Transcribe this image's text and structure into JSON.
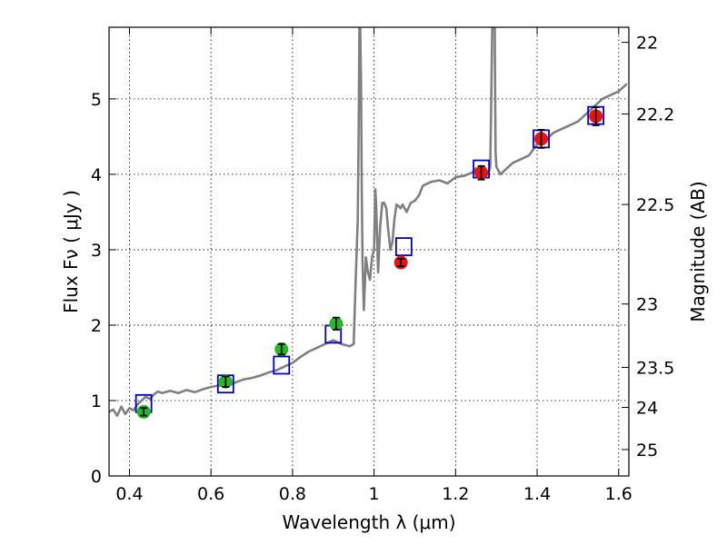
{
  "chart_data": {
    "type": "scatter",
    "xlabel": "Wavelength  λ (μm)",
    "ylabel": "Flux  Fν  ( μJy )",
    "y2label": "Magnitude (AB)",
    "xlim": [
      0.35,
      1.625
    ],
    "ylim": [
      0,
      5.95
    ],
    "grid": true,
    "x_ticks": [
      0.4,
      0.6,
      0.8,
      1.0,
      1.2,
      1.4,
      1.6
    ],
    "x_tick_labels": [
      "0.4",
      "0.6",
      "0.8",
      "1",
      "1.2",
      "1.4",
      "1.6"
    ],
    "y_ticks": [
      0,
      1,
      2,
      3,
      4,
      5
    ],
    "y_tick_labels": [
      "0",
      "1",
      "2",
      "3",
      "4",
      "5"
    ],
    "y2_ticks": [
      {
        "label": "22",
        "flux": 5.75
      },
      {
        "label": "22.2",
        "flux": 4.8
      },
      {
        "label": "22.5",
        "flux": 3.6
      },
      {
        "label": "23",
        "flux": 2.28
      },
      {
        "label": "23.5",
        "flux": 1.44
      },
      {
        "label": "24",
        "flux": 0.91
      },
      {
        "label": "25",
        "flux": 0.35
      }
    ],
    "series": [
      {
        "kind": "line",
        "color": "#808080",
        "x": [
          0.35,
          0.36,
          0.37,
          0.38,
          0.39,
          0.4,
          0.41,
          0.42,
          0.43,
          0.44,
          0.45,
          0.46,
          0.47,
          0.48,
          0.5,
          0.52,
          0.54,
          0.56,
          0.58,
          0.6,
          0.62,
          0.64,
          0.66,
          0.68,
          0.7,
          0.72,
          0.74,
          0.76,
          0.78,
          0.8,
          0.82,
          0.84,
          0.86,
          0.88,
          0.9,
          0.92,
          0.94,
          0.95,
          0.955,
          0.96,
          0.962,
          0.964,
          0.966,
          0.968,
          0.97,
          0.972,
          0.975,
          0.978,
          0.98,
          0.985,
          0.99,
          0.995,
          1.0,
          1.003,
          1.005,
          1.01,
          1.015,
          1.02,
          1.025,
          1.03,
          1.035,
          1.04,
          1.045,
          1.05,
          1.055,
          1.06,
          1.065,
          1.07,
          1.075,
          1.08,
          1.09,
          1.1,
          1.11,
          1.12,
          1.14,
          1.16,
          1.18,
          1.2,
          1.22,
          1.24,
          1.25,
          1.26,
          1.27,
          1.275,
          1.28,
          1.285,
          1.29,
          1.292,
          1.294,
          1.296,
          1.298,
          1.3,
          1.305,
          1.31,
          1.32,
          1.34,
          1.36,
          1.38,
          1.4,
          1.42,
          1.44,
          1.46,
          1.48,
          1.5,
          1.52,
          1.54,
          1.56,
          1.58,
          1.6,
          1.61,
          1.62
        ],
        "y": [
          0.85,
          0.88,
          0.8,
          0.92,
          0.82,
          0.9,
          0.87,
          0.95,
          1.0,
          1.05,
          1.02,
          1.08,
          1.12,
          1.1,
          1.13,
          1.1,
          1.14,
          1.11,
          1.15,
          1.18,
          1.2,
          1.19,
          1.24,
          1.28,
          1.3,
          1.33,
          1.37,
          1.4,
          1.45,
          1.5,
          1.58,
          1.65,
          1.7,
          1.75,
          1.8,
          1.75,
          1.72,
          1.75,
          2.6,
          3.4,
          4.5,
          5.95,
          5.95,
          5.2,
          3.8,
          2.8,
          2.2,
          2.6,
          2.9,
          2.7,
          2.6,
          2.9,
          3.0,
          3.8,
          3.6,
          2.7,
          3.3,
          3.62,
          3.62,
          3.55,
          3.25,
          3.0,
          3.1,
          3.4,
          3.6,
          3.58,
          3.55,
          3.6,
          3.55,
          3.5,
          3.62,
          3.65,
          3.72,
          3.85,
          3.9,
          3.92,
          3.88,
          3.96,
          3.98,
          4.02,
          4.08,
          4.06,
          4.1,
          4.05,
          4.0,
          4.1,
          5.95,
          5.95,
          5.95,
          5.95,
          4.3,
          4.1,
          4.05,
          4.0,
          4.05,
          4.15,
          4.2,
          4.25,
          4.4,
          4.45,
          4.55,
          4.6,
          4.65,
          4.7,
          4.8,
          4.9,
          5.0,
          5.05,
          5.1,
          5.15,
          5.2
        ]
      },
      {
        "kind": "model",
        "marker": "open-square",
        "color": "#0000cc",
        "x": [
          0.435,
          0.636,
          0.773,
          0.9,
          1.073,
          1.263,
          1.41,
          1.544
        ],
        "y": [
          0.96,
          1.22,
          1.47,
          1.88,
          3.04,
          4.07,
          4.47,
          4.78
        ]
      },
      {
        "kind": "observed",
        "marker": "circle",
        "color": "#22bb22",
        "x": [
          0.435,
          0.636,
          0.773,
          0.907
        ],
        "y": [
          0.85,
          1.25,
          1.68,
          2.02
        ],
        "err": [
          0.05,
          0.07,
          0.07,
          0.08
        ]
      },
      {
        "kind": "observed",
        "marker": "circle",
        "color": "#ee1111",
        "x": [
          1.066,
          1.263,
          1.41,
          1.544
        ],
        "y": [
          2.83,
          4.02,
          4.47,
          4.77
        ],
        "err": [
          0.05,
          0.09,
          0.12,
          0.12
        ]
      }
    ]
  }
}
